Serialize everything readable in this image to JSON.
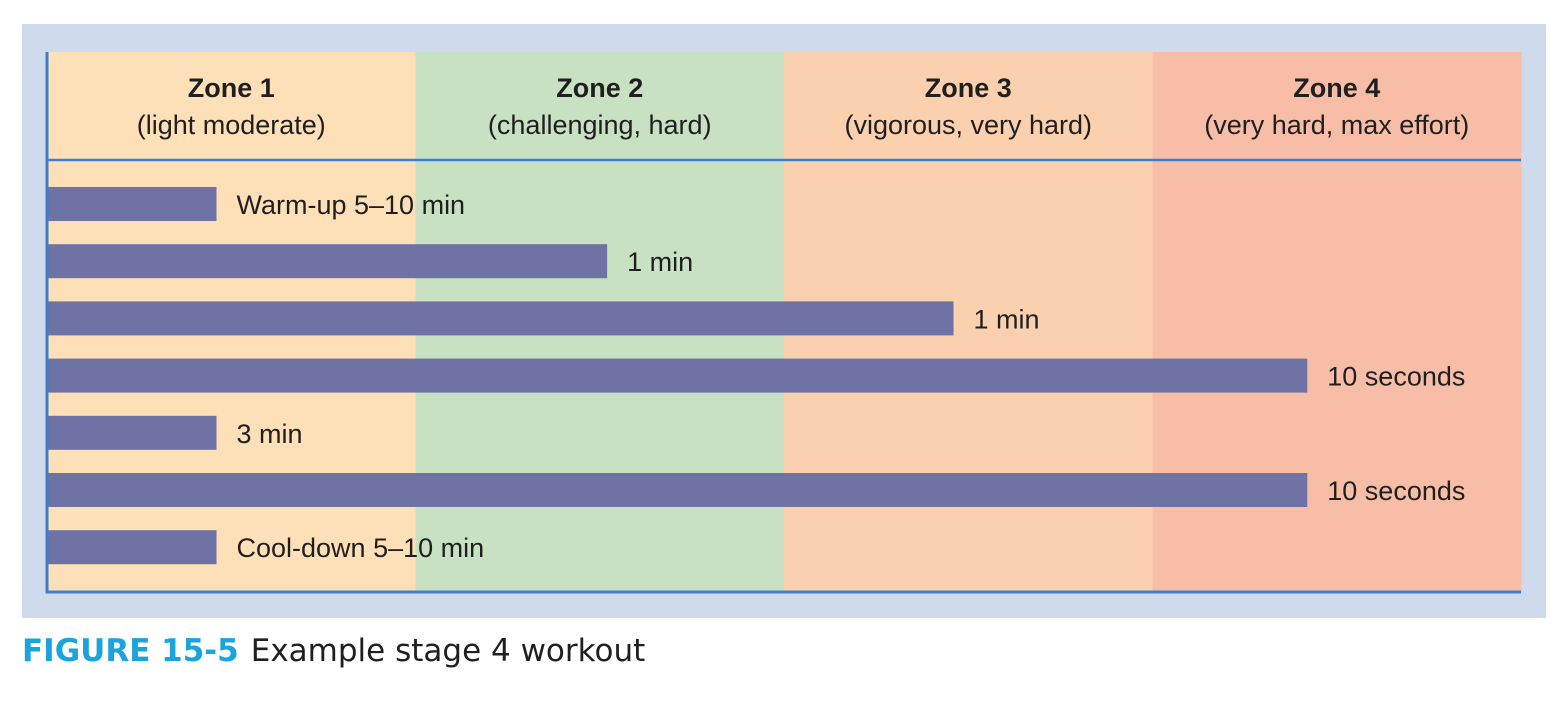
{
  "figure": {
    "label": "FIGURE 15-5",
    "caption": "Example stage 4 workout"
  },
  "colors": {
    "frame": "#cfdaec",
    "axis": "#3f7fc9",
    "bar": "#6e72a4",
    "caption_label": "#1aa3dc",
    "zones": [
      "#fde0b8",
      "#c8e1c3",
      "#fbd0ae",
      "#f8bda6"
    ]
  },
  "chart_data": {
    "type": "bar",
    "orientation": "horizontal",
    "x_scale": "intensity zones 1-4",
    "xlim": [
      0,
      4
    ],
    "zones": [
      {
        "title": "Zone 1",
        "description": "(light moderate)"
      },
      {
        "title": "Zone 2",
        "description": "(challenging, hard)"
      },
      {
        "title": "Zone 3",
        "description": "(vigorous, very hard)"
      },
      {
        "title": "Zone 4",
        "description": "(very hard, max effort)"
      }
    ],
    "bars": [
      {
        "label": "Warm-up 5–10 min",
        "intensity": 0.46
      },
      {
        "label": "1 min",
        "intensity": 1.52
      },
      {
        "label": "1 min",
        "intensity": 2.46
      },
      {
        "label": "10 seconds",
        "intensity": 3.42
      },
      {
        "label": "3 min",
        "intensity": 0.46
      },
      {
        "label": "10 seconds",
        "intensity": 3.42
      },
      {
        "label": "Cool-down 5–10 min",
        "intensity": 0.46
      }
    ],
    "grid": false,
    "legend": "none"
  }
}
